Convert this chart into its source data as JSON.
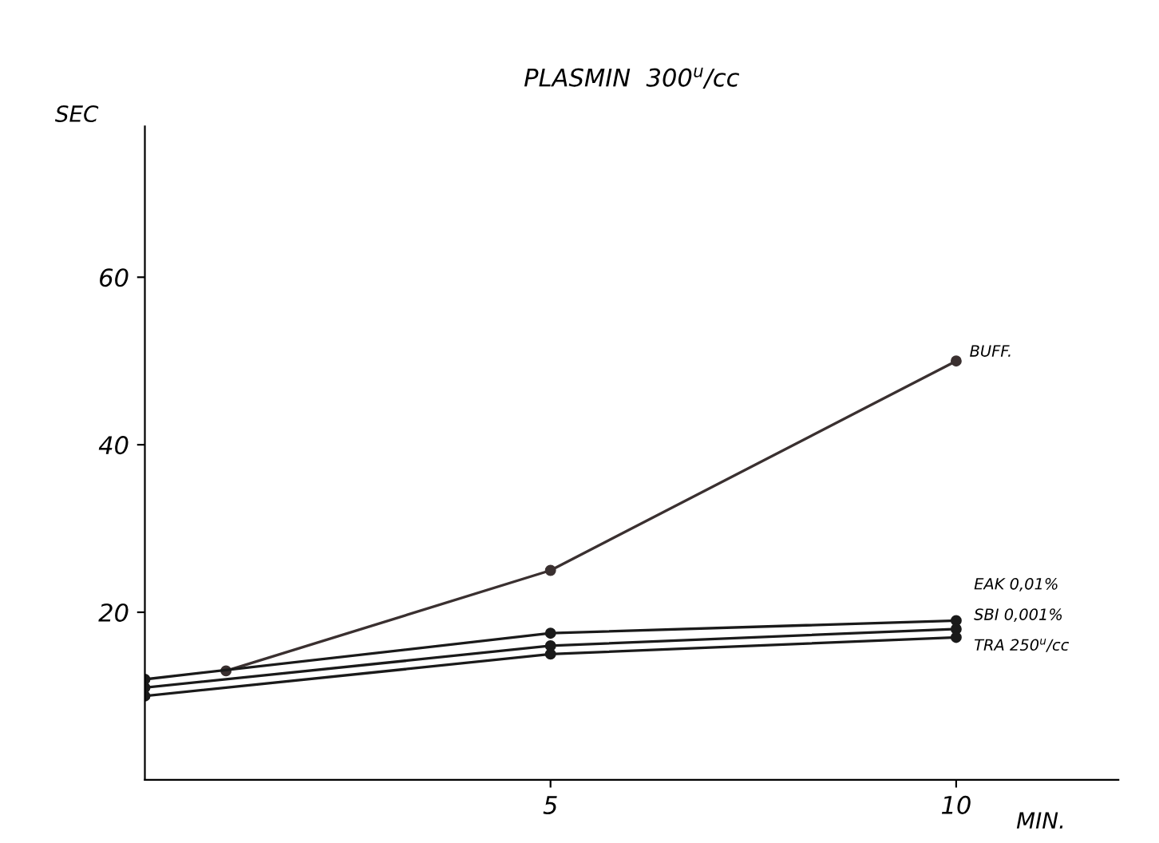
{
  "chart_data": {
    "type": "line",
    "title": "PLASMIN  300$^{u}$/cc",
    "ylabel": "SEC",
    "xlabel": "MIN.",
    "xlim": [
      0,
      12
    ],
    "xticks": [
      5,
      10
    ],
    "ylim": [
      0,
      78
    ],
    "yticks": [
      20,
      40,
      60
    ],
    "grid": false,
    "legend": false,
    "marker": "circle",
    "line_style": "solid",
    "series": [
      {
        "name": "BUFF.",
        "color": "#3a3030",
        "x": [
          1,
          5,
          10
        ],
        "values": [
          13,
          25,
          50
        ]
      },
      {
        "name": "EAK 0,01%",
        "color": "#1a1a1a",
        "x": [
          0,
          5,
          10
        ],
        "values": [
          12,
          17.5,
          19
        ]
      },
      {
        "name": "SBI 0,001%",
        "color": "#1a1a1a",
        "x": [
          0,
          5,
          10
        ],
        "values": [
          11,
          16,
          18
        ]
      },
      {
        "name": "TRA 250$^{u}$/cc",
        "color": "#1a1a1a",
        "x": [
          0,
          5,
          10
        ],
        "values": [
          10,
          15,
          17
        ]
      }
    ]
  }
}
